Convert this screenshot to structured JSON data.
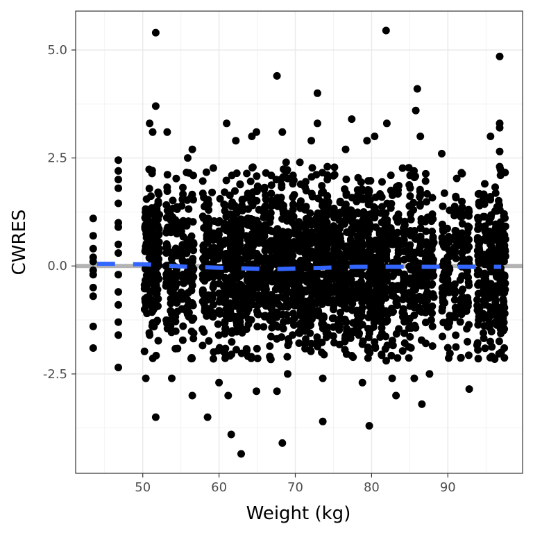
{
  "chart_data": {
    "type": "scatter",
    "title": "",
    "xlabel": "Weight (kg)",
    "ylabel": "CWRES",
    "xlim": [
      41.2,
      99.8
    ],
    "ylim": [
      -4.8,
      5.9
    ],
    "xticks": [
      50,
      60,
      70,
      80,
      90
    ],
    "xtick_labels": [
      "50",
      "60",
      "70",
      "80",
      "90"
    ],
    "yticks": [
      5.0,
      2.5,
      0.0,
      -2.5
    ],
    "ytick_labels": [
      "5.0",
      "2.5",
      "0.0",
      "-2.5"
    ],
    "grid": true,
    "legend": "none",
    "reference_line": {
      "y": 0,
      "color": "#b3b3b3"
    },
    "point_color": "#000000",
    "smooth_color": "#3366ff",
    "weight_levels": [
      43.5,
      46.8,
      50.4,
      50.9,
      51.3,
      51.7,
      52.0,
      53.2,
      53.8,
      54.4,
      55.2,
      55.9,
      56.5,
      58.0,
      58.5,
      59.2,
      60.0,
      60.8,
      61.6,
      62.2,
      62.9,
      63.7,
      64.3,
      65.1,
      66.0,
      66.8,
      67.6,
      68.3,
      69.0,
      69.8,
      70.6,
      71.4,
      72.1,
      72.9,
      73.6,
      74.2,
      75.0,
      75.8,
      76.6,
      77.4,
      78.2,
      78.8,
      79.7,
      80.4,
      81.2,
      81.9,
      82.7,
      83.4,
      84.2,
      85.0,
      85.6,
      86.4,
      87.2,
      88.0,
      89.4,
      90.1,
      91.0,
      91.8,
      92.6,
      94.0,
      94.8,
      95.6,
      96.3,
      96.8,
      97.4
    ],
    "points": [
      [
        43.5,
        1.1
      ],
      [
        43.5,
        0.7
      ],
      [
        43.5,
        0.4
      ],
      [
        43.5,
        0.2
      ],
      [
        43.5,
        0.1
      ],
      [
        43.5,
        -0.1
      ],
      [
        43.5,
        -0.2
      ],
      [
        43.5,
        -0.5
      ],
      [
        43.5,
        -0.7
      ],
      [
        43.5,
        -1.4
      ],
      [
        43.5,
        -1.9
      ],
      [
        46.8,
        2.45
      ],
      [
        46.8,
        2.2
      ],
      [
        46.8,
        2.0
      ],
      [
        46.8,
        1.8
      ],
      [
        46.8,
        1.45
      ],
      [
        46.8,
        1.0
      ],
      [
        46.8,
        0.9
      ],
      [
        46.8,
        0.5
      ],
      [
        46.8,
        0.3
      ],
      [
        46.8,
        -0.2
      ],
      [
        46.8,
        -0.6
      ],
      [
        46.8,
        -0.9
      ],
      [
        46.8,
        -1.3
      ],
      [
        46.8,
        -1.6
      ],
      [
        46.8,
        -2.35
      ],
      [
        50.4,
        -2.6
      ],
      [
        50.9,
        3.3
      ],
      [
        51.3,
        3.1
      ],
      [
        51.7,
        5.4
      ],
      [
        51.7,
        3.7
      ],
      [
        51.7,
        -3.5
      ],
      [
        53.2,
        3.1
      ],
      [
        53.8,
        -2.6
      ],
      [
        55.9,
        2.5
      ],
      [
        56.5,
        2.7
      ],
      [
        56.5,
        -3.0
      ],
      [
        58.5,
        -3.5
      ],
      [
        60.0,
        -2.7
      ],
      [
        61.0,
        3.3
      ],
      [
        61.2,
        -3.0
      ],
      [
        61.6,
        -3.9
      ],
      [
        62.2,
        2.9
      ],
      [
        62.9,
        -4.35
      ],
      [
        64.3,
        3.0
      ],
      [
        64.9,
        3.1
      ],
      [
        64.9,
        -2.9
      ],
      [
        67.6,
        4.4
      ],
      [
        67.6,
        -2.9
      ],
      [
        68.3,
        3.1
      ],
      [
        68.3,
        -4.1
      ],
      [
        68.8,
        2.4
      ],
      [
        69.0,
        -2.5
      ],
      [
        70.6,
        2.4
      ],
      [
        72.1,
        2.9
      ],
      [
        72.9,
        4.0
      ],
      [
        72.9,
        3.3
      ],
      [
        73.6,
        -2.6
      ],
      [
        73.6,
        -3.6
      ],
      [
        74.2,
        2.3
      ],
      [
        76.6,
        2.7
      ],
      [
        77.4,
        3.4
      ],
      [
        78.8,
        -2.7
      ],
      [
        79.4,
        2.9
      ],
      [
        79.7,
        -3.7
      ],
      [
        80.4,
        3.0
      ],
      [
        81.9,
        5.45
      ],
      [
        82.0,
        3.3
      ],
      [
        82.7,
        -2.6
      ],
      [
        83.2,
        -3.0
      ],
      [
        85.6,
        -2.6
      ],
      [
        85.8,
        3.6
      ],
      [
        86.0,
        4.1
      ],
      [
        86.4,
        3.0
      ],
      [
        86.6,
        -3.2
      ],
      [
        87.6,
        -2.5
      ],
      [
        89.2,
        2.6
      ],
      [
        92.8,
        -2.85
      ],
      [
        95.6,
        3.0
      ],
      [
        96.8,
        4.85
      ],
      [
        96.8,
        3.3
      ],
      [
        96.8,
        3.2
      ],
      [
        96.8,
        2.65
      ],
      [
        96.8,
        2.3
      ],
      [
        97.0,
        -2.0
      ],
      [
        97.4,
        -1.9
      ]
    ],
    "smooth": {
      "x": [
        44,
        46,
        48,
        50,
        52,
        54,
        56,
        58,
        60,
        62,
        64,
        66,
        68,
        70,
        72,
        74,
        76,
        78,
        80,
        82,
        84,
        86,
        88,
        90,
        92,
        94,
        96,
        97
      ],
      "y": [
        0.05,
        0.05,
        0.04,
        0.04,
        0.02,
        0.0,
        -0.02,
        -0.03,
        -0.04,
        -0.05,
        -0.06,
        -0.07,
        -0.07,
        -0.06,
        -0.05,
        -0.04,
        -0.03,
        -0.02,
        -0.02,
        -0.02,
        -0.02,
        -0.02,
        -0.02,
        -0.02,
        -0.02,
        -0.02,
        -0.02,
        -0.02
      ]
    }
  }
}
